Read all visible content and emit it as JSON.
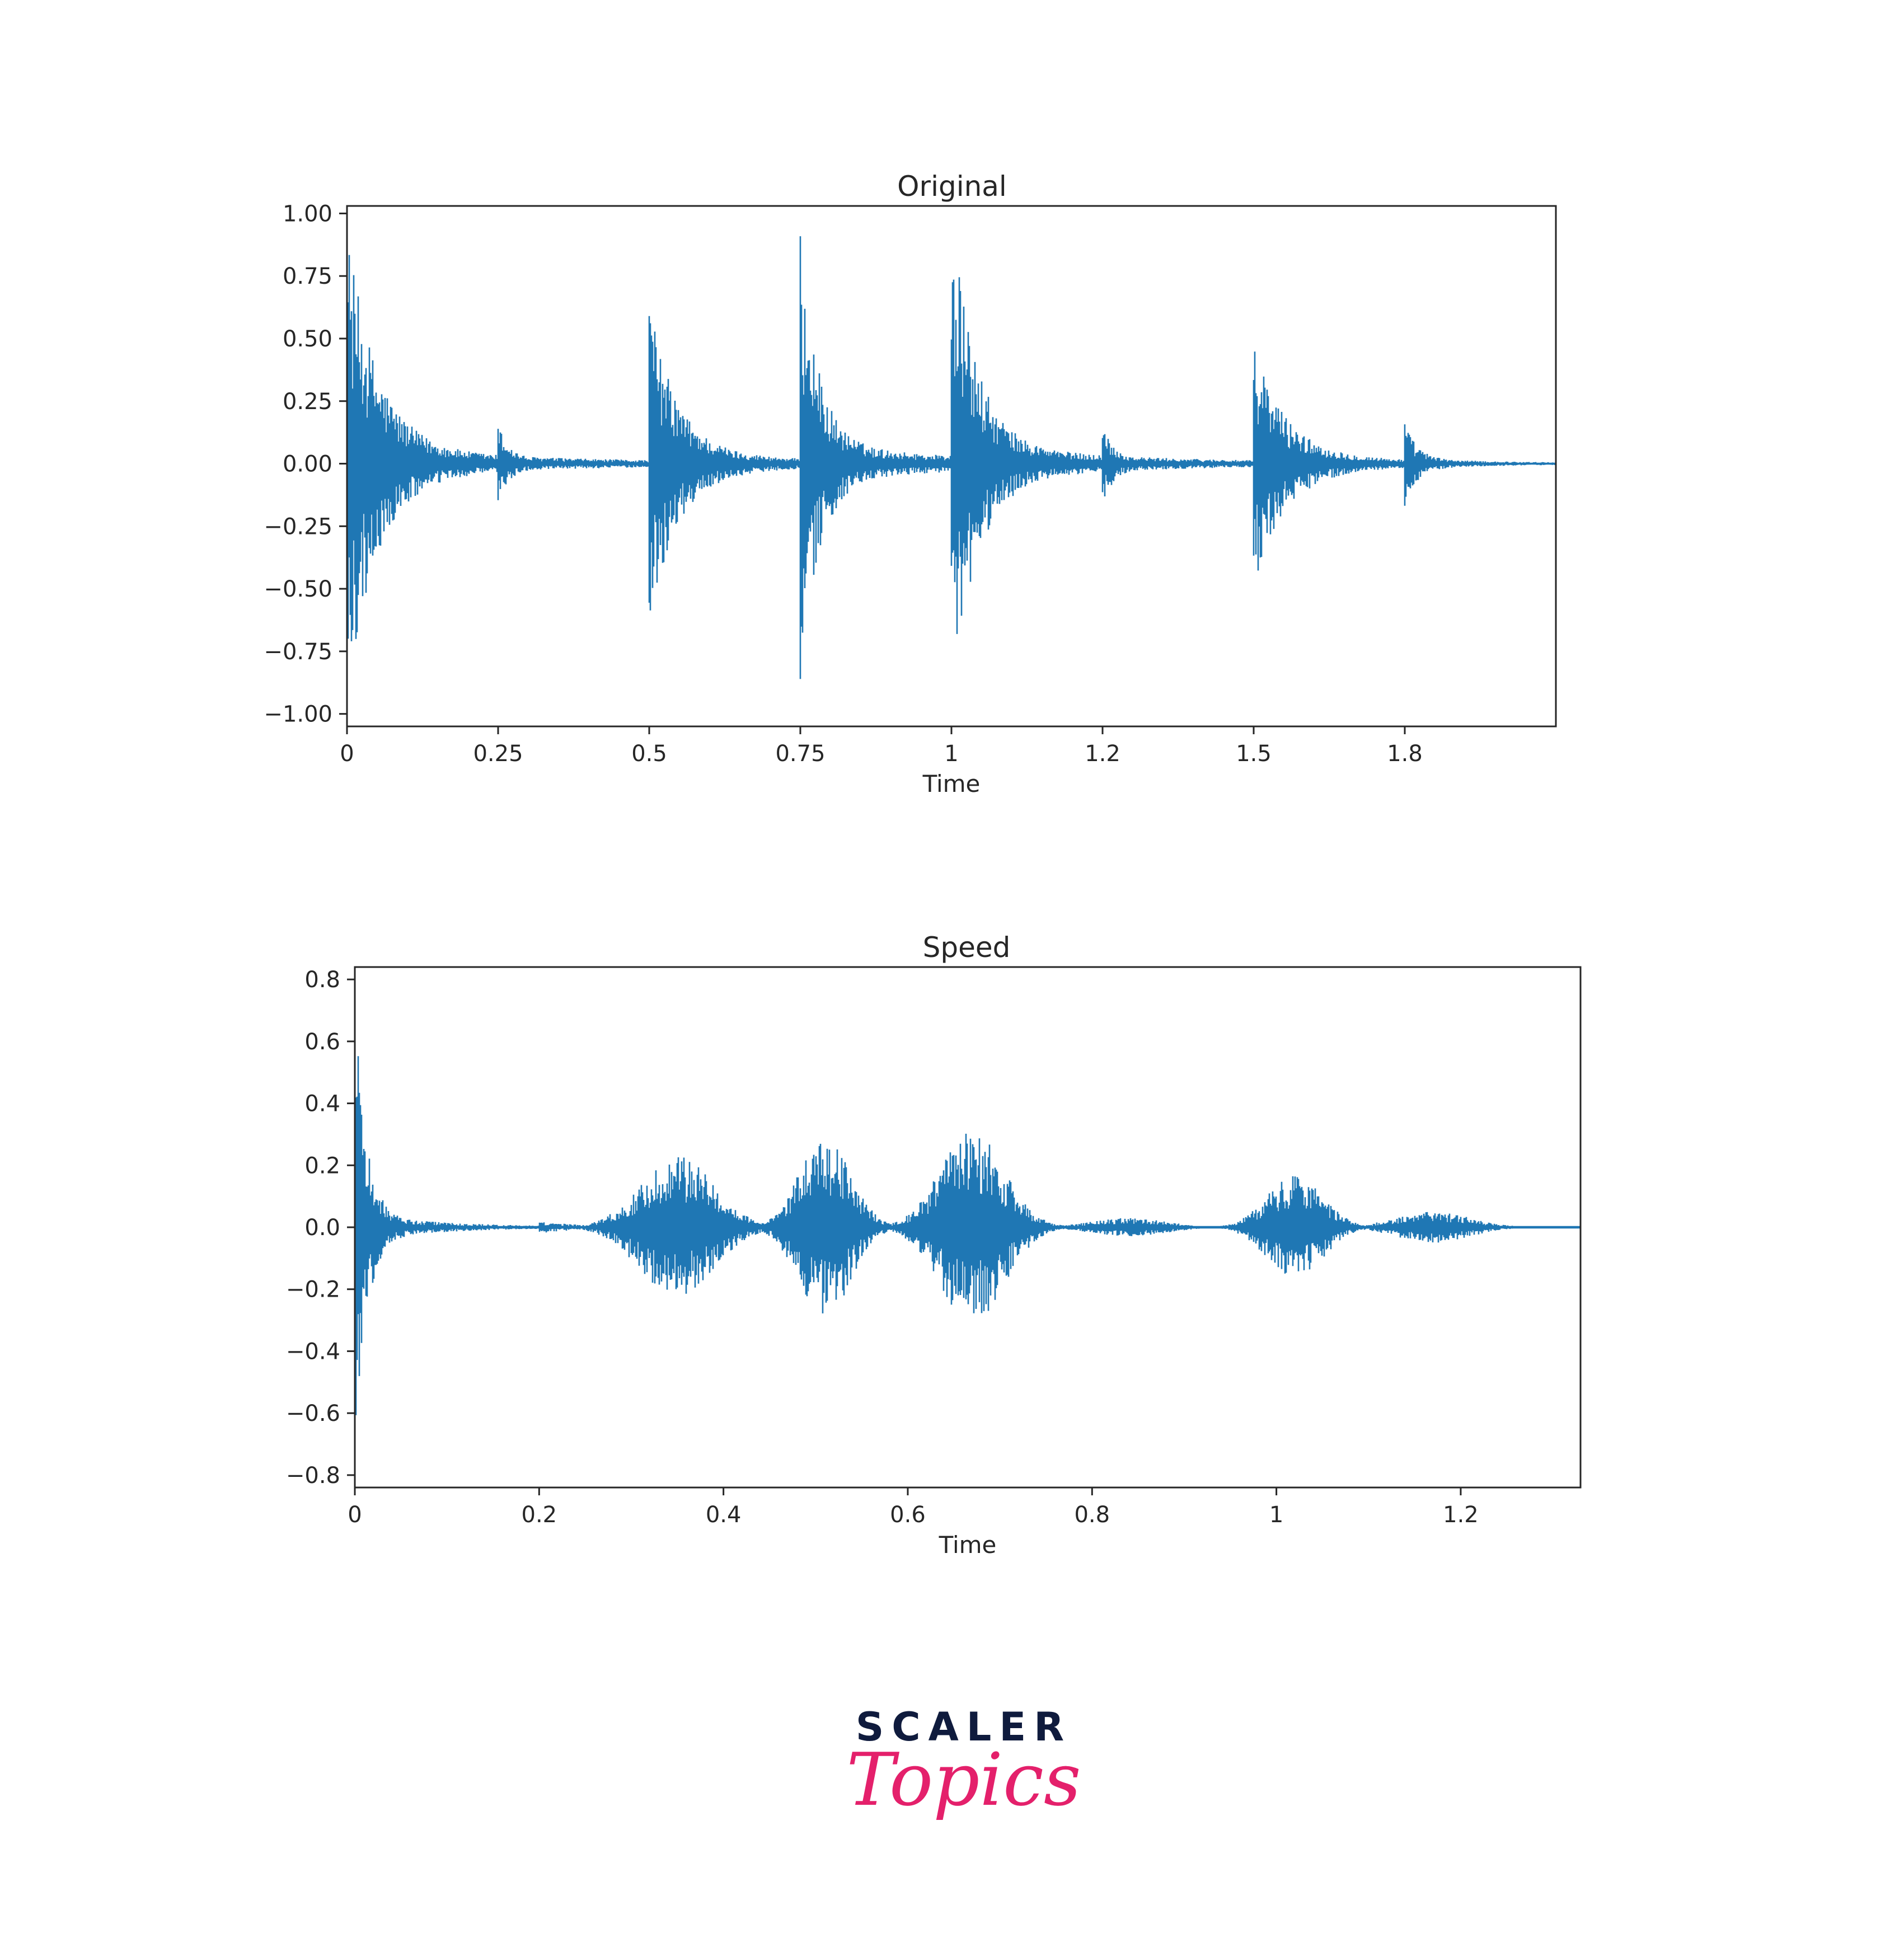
{
  "colors": {
    "wave": "#1f77b4",
    "axis": "#262626",
    "logo_dark": "#0f1b3d",
    "logo_pink": "#e4206b"
  },
  "chart_data": [
    {
      "type": "line",
      "title": "Original",
      "xlabel": "Time",
      "ylabel": "",
      "xlim": [
        0,
        2.0
      ],
      "ylim": [
        -1.05,
        1.03
      ],
      "x_ticks": [
        0,
        0.25,
        0.5,
        0.75,
        1,
        1.25,
        1.5,
        1.75
      ],
      "x_tick_labels": [
        "0",
        "0.25",
        "0.5",
        "0.75",
        "1",
        "1.2",
        "1.5",
        "1.8"
      ],
      "y_ticks": [
        1.0,
        0.75,
        0.5,
        0.25,
        0.0,
        -0.25,
        -0.5,
        -0.75,
        -1.0
      ],
      "y_tick_labels": [
        "1.00",
        "0.75",
        "0.50",
        "0.25",
        "0.00",
        "−0.25",
        "−0.50",
        "−0.75",
        "−1.00"
      ],
      "grid": false,
      "series": [
        {
          "envelope_events": [
            {
              "t": 0.0,
              "pos": 0.89,
              "neg": 0.89,
              "decay": 0.05,
              "floor": 0.06,
              "floor_decay": 0.35
            },
            {
              "t": 0.25,
              "pos": 0.14,
              "neg": 0.14,
              "decay": 0.02,
              "floor": 0.02,
              "floor_decay": 0.2
            },
            {
              "t": 0.5,
              "pos": 0.6,
              "neg": 0.6,
              "decay": 0.045,
              "floor": 0.05,
              "floor_decay": 0.25
            },
            {
              "t": 0.75,
              "pos": 0.84,
              "neg": 0.84,
              "decay": 0.03,
              "floor": 0.08,
              "floor_decay": 0.28
            },
            {
              "t": 1.0,
              "pos": 0.94,
              "neg": 0.94,
              "decay": 0.04,
              "floor": 0.08,
              "floor_decay": 0.28
            },
            {
              "t": 1.25,
              "pos": 0.14,
              "neg": 0.14,
              "decay": 0.02,
              "floor": 0.02,
              "floor_decay": 0.2
            },
            {
              "t": 1.5,
              "pos": 0.46,
              "neg": 0.46,
              "decay": 0.05,
              "floor": 0.04,
              "floor_decay": 0.25
            },
            {
              "t": 1.75,
              "pos": 0.15,
              "neg": 0.15,
              "decay": 0.02,
              "floor": 0.02,
              "floor_decay": 0.2
            }
          ]
        }
      ]
    },
    {
      "type": "line",
      "title": "Speed",
      "xlabel": "Time",
      "ylabel": "",
      "xlim": [
        0,
        1.33
      ],
      "ylim": [
        -0.84,
        0.84
      ],
      "x_ticks": [
        0,
        0.2,
        0.4,
        0.6,
        0.8,
        1.0,
        1.2
      ],
      "x_tick_labels": [
        "0",
        "0.2",
        "0.4",
        "0.6",
        "0.8",
        "1",
        "1.2"
      ],
      "y_ticks": [
        0.8,
        0.6,
        0.4,
        0.2,
        0.0,
        -0.2,
        -0.4,
        -0.6,
        -0.8
      ],
      "y_tick_labels": [
        "0.8",
        "0.6",
        "0.4",
        "0.2",
        "0.0",
        "−0.2",
        "−0.4",
        "−0.6",
        "−0.8"
      ],
      "grid": false,
      "series": [
        {
          "envelope_events": [
            {
              "t": 0.0,
              "pos": 0.76,
              "neg": 0.76,
              "decay": 0.012,
              "floor": 0.04,
              "floor_decay": 0.1
            },
            {
              "t": 0.2,
              "pos": 0.02,
              "neg": 0.02,
              "decay": 0.05,
              "floor": 0.0,
              "floor_decay": 0.1
            },
            {
              "t": 0.35,
              "pos": 0.23,
              "neg": 0.23,
              "bell": 0.04
            },
            {
              "t": 0.51,
              "pos": 0.29,
              "neg": 0.29,
              "bell": 0.028
            },
            {
              "t": 0.67,
              "pos": 0.31,
              "neg": 0.31,
              "bell": 0.035
            },
            {
              "t": 0.84,
              "pos": 0.03,
              "neg": 0.03,
              "bell": 0.04
            },
            {
              "t": 1.02,
              "pos": 0.17,
              "neg": 0.17,
              "bell": 0.03
            },
            {
              "t": 1.17,
              "pos": 0.05,
              "neg": 0.05,
              "bell": 0.04
            }
          ]
        }
      ]
    }
  ],
  "logo": {
    "top": "SCALER",
    "bottom": "Topics"
  }
}
